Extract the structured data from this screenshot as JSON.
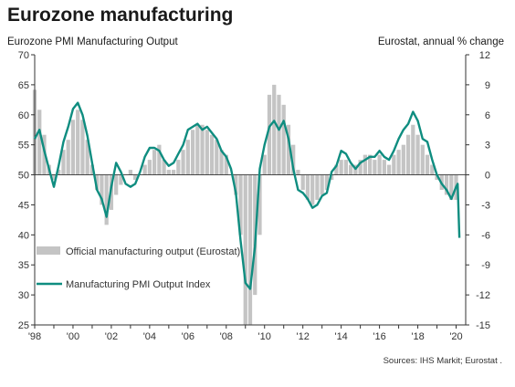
{
  "title": "Eurozone manufacturing",
  "left_axis_title": "Eurozone PMI Manufacturing Output",
  "right_axis_title": "Eurostat, annual % change",
  "source": "Sources: IHS Markit; Eurostat .",
  "colors": {
    "pmi_line": "#0f8d80",
    "eurostat_bars": "#c4c4c4",
    "axis": "#333333"
  },
  "chart_data": {
    "type": "bar+line",
    "left_axis": {
      "range": [
        25,
        70
      ],
      "ticks": [
        25,
        30,
        35,
        40,
        45,
        50,
        55,
        60,
        65,
        70
      ]
    },
    "right_axis": {
      "range": [
        -15,
        12
      ],
      "ticks": [
        -15,
        -12,
        -9,
        -6,
        -3,
        0,
        3,
        6,
        9,
        12
      ]
    },
    "x_range": [
      1998,
      2020.5
    ],
    "x_ticks": [
      {
        "value": 1998,
        "label": "'98"
      },
      {
        "value": 2000,
        "label": "'00"
      },
      {
        "value": 2002,
        "label": "'02"
      },
      {
        "value": 2004,
        "label": "'04"
      },
      {
        "value": 2006,
        "label": "'06"
      },
      {
        "value": 2008,
        "label": "'08"
      },
      {
        "value": 2010,
        "label": "'10"
      },
      {
        "value": 2012,
        "label": "'12"
      },
      {
        "value": 2014,
        "label": "'14"
      },
      {
        "value": 2016,
        "label": "'16"
      },
      {
        "value": 2018,
        "label": "'18"
      },
      {
        "value": 2020,
        "label": "'20"
      }
    ],
    "legend_position": "lower-left",
    "series": [
      {
        "name": "Official manufacturing output (Eurostat)",
        "type": "bar",
        "axis": "right",
        "x": [
          1998.0,
          1998.25,
          1998.5,
          1998.75,
          1999.0,
          1999.25,
          1999.5,
          1999.75,
          2000.0,
          2000.25,
          2000.5,
          2000.75,
          2001.0,
          2001.25,
          2001.5,
          2001.75,
          2002.0,
          2002.25,
          2002.5,
          2002.75,
          2003.0,
          2003.25,
          2003.5,
          2003.75,
          2004.0,
          2004.25,
          2004.5,
          2004.75,
          2005.0,
          2005.25,
          2005.5,
          2005.75,
          2006.0,
          2006.25,
          2006.5,
          2006.75,
          2007.0,
          2007.25,
          2007.5,
          2007.75,
          2008.0,
          2008.25,
          2008.5,
          2008.75,
          2009.0,
          2009.25,
          2009.5,
          2009.75,
          2010.0,
          2010.25,
          2010.5,
          2010.75,
          2011.0,
          2011.25,
          2011.5,
          2011.75,
          2012.0,
          2012.25,
          2012.5,
          2012.75,
          2013.0,
          2013.25,
          2013.5,
          2013.75,
          2014.0,
          2014.25,
          2014.5,
          2014.75,
          2015.0,
          2015.25,
          2015.5,
          2015.75,
          2016.0,
          2016.25,
          2016.5,
          2016.75,
          2017.0,
          2017.25,
          2017.5,
          2017.75,
          2018.0,
          2018.25,
          2018.5,
          2018.75,
          2019.0,
          2019.25,
          2019.5,
          2019.75,
          2020.0
        ],
        "values": [
          8.5,
          6.5,
          4.0,
          1.0,
          -0.5,
          0.5,
          2.5,
          3.5,
          5.5,
          6.5,
          5.5,
          3.5,
          1.0,
          -1.5,
          -3.0,
          -5.0,
          -3.5,
          -2.0,
          -1.0,
          0.0,
          0.5,
          -0.5,
          0.0,
          1.0,
          1.5,
          2.5,
          3.0,
          1.5,
          0.5,
          0.5,
          1.5,
          2.5,
          3.5,
          4.5,
          5.0,
          5.0,
          4.5,
          4.0,
          3.5,
          2.5,
          2.0,
          0.0,
          -2.0,
          -6.0,
          -15.0,
          -15.0,
          -12.0,
          -6.0,
          2.0,
          8.0,
          9.0,
          8.0,
          7.0,
          5.0,
          3.0,
          0.5,
          -1.5,
          -2.5,
          -3.0,
          -2.5,
          -2.0,
          -1.5,
          -0.5,
          1.0,
          1.5,
          1.5,
          1.0,
          1.0,
          1.5,
          2.0,
          2.0,
          1.5,
          2.0,
          1.5,
          1.0,
          2.0,
          2.5,
          3.0,
          4.0,
          5.0,
          4.0,
          3.0,
          2.0,
          1.0,
          -0.5,
          -1.5,
          -2.0,
          -2.5,
          -2.5
        ]
      },
      {
        "name": "Manufacturing PMI Output Index",
        "type": "line",
        "axis": "left",
        "x": [
          1998.0,
          1998.25,
          1998.5,
          1998.75,
          1999.0,
          1999.25,
          1999.5,
          1999.75,
          2000.0,
          2000.25,
          2000.5,
          2000.75,
          2001.0,
          2001.25,
          2001.5,
          2001.75,
          2002.0,
          2002.25,
          2002.5,
          2002.75,
          2003.0,
          2003.25,
          2003.5,
          2003.75,
          2004.0,
          2004.25,
          2004.5,
          2004.75,
          2005.0,
          2005.25,
          2005.5,
          2005.75,
          2006.0,
          2006.25,
          2006.5,
          2006.75,
          2007.0,
          2007.25,
          2007.5,
          2007.75,
          2008.0,
          2008.25,
          2008.5,
          2008.75,
          2009.0,
          2009.25,
          2009.5,
          2009.75,
          2010.0,
          2010.25,
          2010.5,
          2010.75,
          2011.0,
          2011.25,
          2011.5,
          2011.75,
          2012.0,
          2012.25,
          2012.5,
          2012.75,
          2013.0,
          2013.25,
          2013.5,
          2013.75,
          2014.0,
          2014.25,
          2014.5,
          2014.75,
          2015.0,
          2015.25,
          2015.5,
          2015.75,
          2016.0,
          2016.25,
          2016.5,
          2016.75,
          2017.0,
          2017.25,
          2017.5,
          2017.75,
          2018.0,
          2018.25,
          2018.5,
          2018.75,
          2019.0,
          2019.25,
          2019.5,
          2019.75,
          2020.0,
          2020.08,
          2020.17
        ],
        "values": [
          56.0,
          57.5,
          54.0,
          51.0,
          48.0,
          51.5,
          55.5,
          58.0,
          61.0,
          62.0,
          60.0,
          56.5,
          52.0,
          47.5,
          46.0,
          43.0,
          48.0,
          52.0,
          50.5,
          48.5,
          48.0,
          48.5,
          50.5,
          53.0,
          54.5,
          54.5,
          54.0,
          52.5,
          51.5,
          52.0,
          53.5,
          55.0,
          57.5,
          58.0,
          58.5,
          57.5,
          58.0,
          57.0,
          56.0,
          54.0,
          53.0,
          51.0,
          47.0,
          39.0,
          32.0,
          31.0,
          38.0,
          51.0,
          55.0,
          58.0,
          59.0,
          57.5,
          59.0,
          56.0,
          51.0,
          47.5,
          47.0,
          46.0,
          44.5,
          45.0,
          46.5,
          47.0,
          50.5,
          51.5,
          54.0,
          53.5,
          52.0,
          51.0,
          52.0,
          52.5,
          53.0,
          53.0,
          54.0,
          53.0,
          52.5,
          54.0,
          56.0,
          57.5,
          58.5,
          60.5,
          59.0,
          56.0,
          55.5,
          52.5,
          50.0,
          48.5,
          47.5,
          46.0,
          48.0,
          48.5,
          39.5
        ]
      }
    ]
  }
}
